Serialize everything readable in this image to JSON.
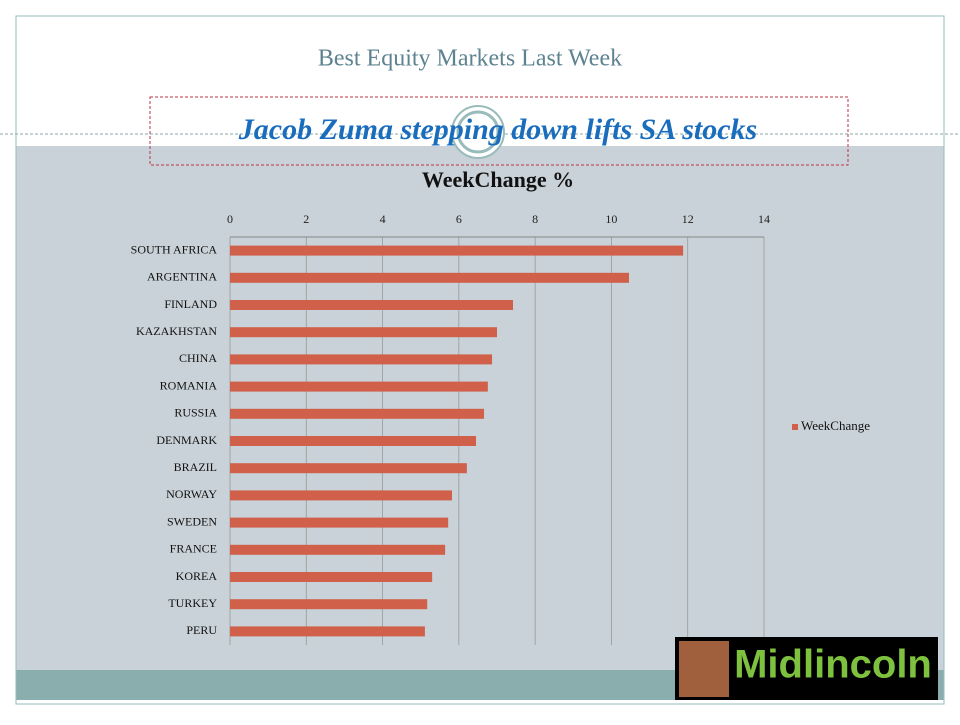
{
  "slide_title": "Best Equity Markets Last Week",
  "subtitle": "Jacob Zuma stepping down lifts SA stocks",
  "logo": "Midlincoln",
  "chart_data": {
    "type": "bar",
    "orientation": "horizontal",
    "title": "WeekChange %",
    "categories": [
      "SOUTH AFRICA",
      "ARGENTINA",
      "FINLAND",
      "KAZAKHSTAN",
      "CHINA",
      "ROMANIA",
      "RUSSIA",
      "DENMARK",
      "BRAZIL",
      "NORWAY",
      "SWEDEN",
      "FRANCE",
      "KOREA",
      "TURKEY",
      "PERU"
    ],
    "series": [
      {
        "name": "WeekChange",
        "color": "#d0604a",
        "values": [
          11.88,
          10.46,
          7.42,
          7.0,
          6.87,
          6.76,
          6.66,
          6.45,
          6.21,
          5.82,
          5.72,
          5.64,
          5.3,
          5.17,
          5.11
        ]
      }
    ],
    "xlim": [
      0,
      14
    ],
    "xticks": [
      0,
      2,
      4,
      6,
      8,
      10,
      12,
      14
    ],
    "grid": true,
    "legend": "right"
  }
}
